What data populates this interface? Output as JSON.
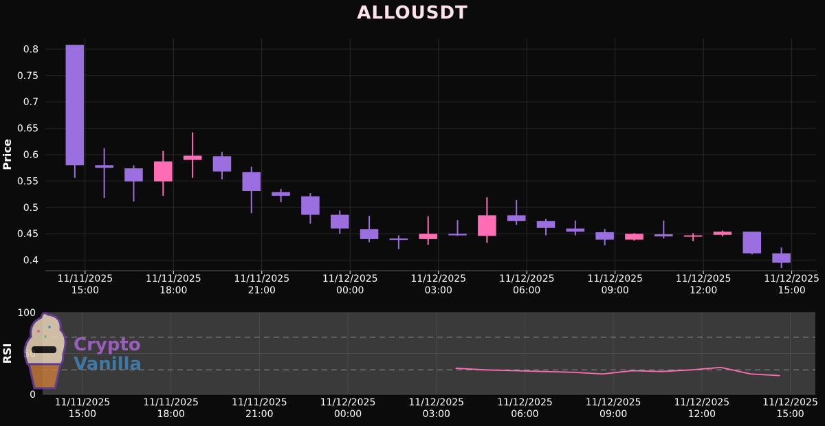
{
  "title": "ALLOUSDT",
  "colors": {
    "background": "#0b0b0b",
    "price_panel": "#0b0b0b",
    "rsi_panel": "#3a3a3a",
    "bull": "#ff6eb4",
    "bear": "#9b6fe0",
    "rsi_line": "#ff6eb4",
    "grid": "#2a2a2a",
    "text": "#ffffff"
  },
  "watermark": {
    "line1": "Crypto",
    "line2": "Vanilla",
    "color1": "#a463c9",
    "color2": "#3f7fb0"
  },
  "chart_data": [
    {
      "type": "candlestick",
      "ylabel": "Price",
      "ylim": [
        0.38,
        0.82
      ],
      "yticks": [
        0.4,
        0.45,
        0.5,
        0.55,
        0.6,
        0.65,
        0.7,
        0.75,
        0.8
      ],
      "ytick_labels": [
        "0.4",
        "0.45",
        "0.5",
        "0.55",
        "0.6",
        "0.65",
        "0.7",
        "0.75",
        "0.8"
      ],
      "xlim": [
        0.0,
        26.2
      ],
      "xticks": [
        {
          "x": 1.35,
          "label": [
            "11/11/2025",
            "15:00"
          ]
        },
        {
          "x": 4.35,
          "label": [
            "11/11/2025",
            "18:00"
          ]
        },
        {
          "x": 7.35,
          "label": [
            "11/11/2025",
            "21:00"
          ]
        },
        {
          "x": 10.35,
          "label": [
            "11/12/2025",
            "00:00"
          ]
        },
        {
          "x": 13.35,
          "label": [
            "11/12/2025",
            "03:00"
          ]
        },
        {
          "x": 16.35,
          "label": [
            "11/12/2025",
            "06:00"
          ]
        },
        {
          "x": 19.35,
          "label": [
            "11/12/2025",
            "09:00"
          ]
        },
        {
          "x": 22.35,
          "label": [
            "11/12/2025",
            "12:00"
          ]
        },
        {
          "x": 25.35,
          "label": [
            "11/12/2025",
            "15:00"
          ]
        }
      ],
      "candles": [
        {
          "x": 1,
          "o": 0.808,
          "h": 0.808,
          "l": 0.556,
          "c": 0.58
        },
        {
          "x": 2,
          "o": 0.58,
          "h": 0.612,
          "l": 0.518,
          "c": 0.575
        },
        {
          "x": 3,
          "o": 0.574,
          "h": 0.58,
          "l": 0.511,
          "c": 0.549
        },
        {
          "x": 4,
          "o": 0.549,
          "h": 0.607,
          "l": 0.522,
          "c": 0.587
        },
        {
          "x": 5,
          "o": 0.59,
          "h": 0.642,
          "l": 0.556,
          "c": 0.598
        },
        {
          "x": 6,
          "o": 0.597,
          "h": 0.605,
          "l": 0.553,
          "c": 0.568
        },
        {
          "x": 7,
          "o": 0.567,
          "h": 0.577,
          "l": 0.489,
          "c": 0.531
        },
        {
          "x": 8,
          "o": 0.529,
          "h": 0.535,
          "l": 0.51,
          "c": 0.522
        },
        {
          "x": 9,
          "o": 0.521,
          "h": 0.527,
          "l": 0.469,
          "c": 0.486
        },
        {
          "x": 10,
          "o": 0.486,
          "h": 0.494,
          "l": 0.45,
          "c": 0.46
        },
        {
          "x": 11,
          "o": 0.459,
          "h": 0.484,
          "l": 0.434,
          "c": 0.44
        },
        {
          "x": 12,
          "o": 0.441,
          "h": 0.447,
          "l": 0.421,
          "c": 0.439
        },
        {
          "x": 13,
          "o": 0.44,
          "h": 0.483,
          "l": 0.429,
          "c": 0.45
        },
        {
          "x": 14,
          "o": 0.45,
          "h": 0.476,
          "l": 0.446,
          "c": 0.447
        },
        {
          "x": 15,
          "o": 0.446,
          "h": 0.519,
          "l": 0.433,
          "c": 0.485
        },
        {
          "x": 16,
          "o": 0.485,
          "h": 0.514,
          "l": 0.467,
          "c": 0.474
        },
        {
          "x": 17,
          "o": 0.474,
          "h": 0.478,
          "l": 0.447,
          "c": 0.461
        },
        {
          "x": 18,
          "o": 0.46,
          "h": 0.475,
          "l": 0.447,
          "c": 0.454
        },
        {
          "x": 19,
          "o": 0.453,
          "h": 0.459,
          "l": 0.428,
          "c": 0.439
        },
        {
          "x": 20,
          "o": 0.439,
          "h": 0.451,
          "l": 0.437,
          "c": 0.45
        },
        {
          "x": 21,
          "o": 0.449,
          "h": 0.475,
          "l": 0.441,
          "c": 0.445
        },
        {
          "x": 22,
          "o": 0.446,
          "h": 0.451,
          "l": 0.436,
          "c": 0.447
        },
        {
          "x": 23,
          "o": 0.448,
          "h": 0.456,
          "l": 0.445,
          "c": 0.454
        },
        {
          "x": 24,
          "o": 0.454,
          "h": 0.454,
          "l": 0.411,
          "c": 0.413
        },
        {
          "x": 25,
          "o": 0.413,
          "h": 0.424,
          "l": 0.385,
          "c": 0.395
        }
      ]
    },
    {
      "type": "line",
      "ylabel": "RSI",
      "ylim": [
        0,
        100
      ],
      "yticks": [
        0,
        50,
        100
      ],
      "ytick_labels": [
        "0",
        "50",
        "100"
      ],
      "levels": [
        70,
        30
      ],
      "x": [
        14,
        15,
        16,
        17,
        18,
        19,
        20,
        21,
        22,
        23,
        24,
        25
      ],
      "values": [
        32,
        30,
        29,
        28,
        27,
        25,
        29,
        28,
        30,
        33,
        25,
        23
      ]
    }
  ]
}
